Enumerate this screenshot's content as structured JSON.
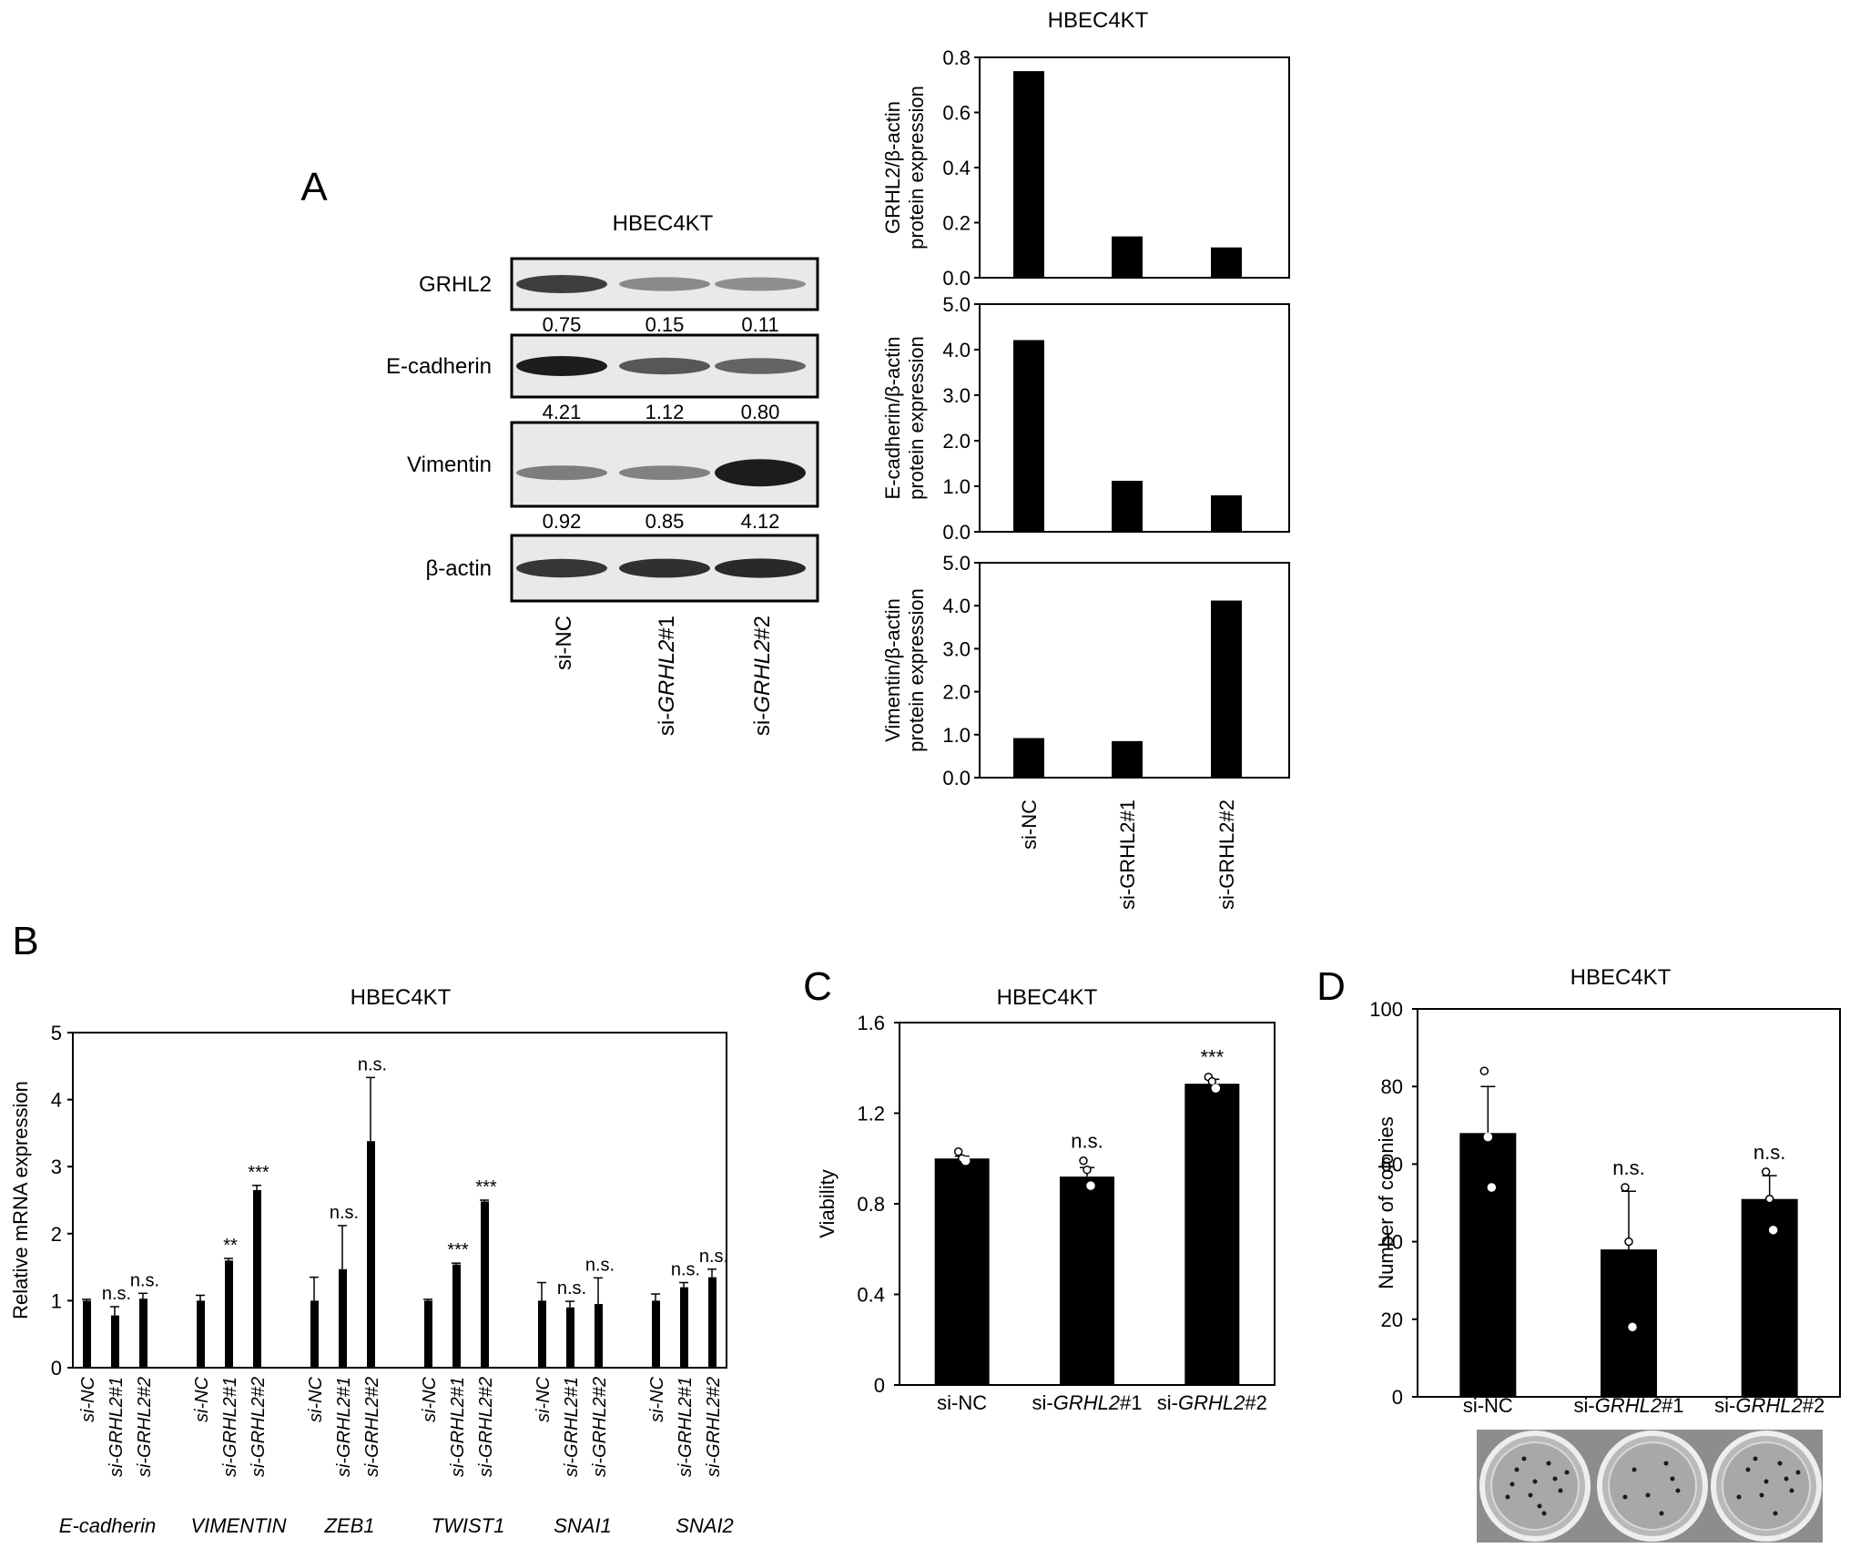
{
  "panels": {
    "A": {
      "letter": "A",
      "blot": {
        "title": "HBEC4KT",
        "rows": [
          {
            "protein": "GRHL2",
            "values": [
              "0.75",
              "0.15",
              "0.11"
            ]
          },
          {
            "protein": "E-cadherin",
            "values": [
              "4.21",
              "1.12",
              "0.80"
            ]
          },
          {
            "protein": "Vimentin",
            "values": [
              "0.92",
              "0.85",
              "4.12"
            ]
          },
          {
            "protein": "β-actin",
            "values": []
          }
        ],
        "lanes": [
          {
            "pre": "si-NC",
            "it": ""
          },
          {
            "pre": "si-",
            "it": "GRHL2",
            "post": "#1"
          },
          {
            "pre": "si-",
            "it": "GRHL2",
            "post": "#2"
          }
        ]
      }
    },
    "B": {
      "letter": "B"
    },
    "C": {
      "letter": "C"
    },
    "D": {
      "letter": "D",
      "photo_caption": "colony plate images"
    }
  },
  "chart_data": [
    {
      "id": "A-grhl2",
      "type": "bar",
      "title": "HBEC4KT",
      "categories": [
        "si-NC",
        "si-GRHL2#1",
        "si-GRHL2#2"
      ],
      "values": [
        0.75,
        0.15,
        0.11
      ],
      "ylabel": [
        "GRHL2/β-actin",
        "protein expression"
      ],
      "ylim": [
        0,
        0.8
      ],
      "yticks": [
        "0.0",
        "0.2",
        "0.4",
        "0.6",
        "0.8"
      ]
    },
    {
      "id": "A-ecad",
      "type": "bar",
      "categories": [
        "si-NC",
        "si-GRHL2#1",
        "si-GRHL2#2"
      ],
      "values": [
        4.21,
        1.12,
        0.8
      ],
      "ylabel": [
        "E-cadherin/β-actin",
        "protein expression"
      ],
      "ylim": [
        0,
        5
      ],
      "yticks": [
        "0.0",
        "1.0",
        "2.0",
        "3.0",
        "4.0",
        "5.0"
      ]
    },
    {
      "id": "A-vim",
      "type": "bar",
      "categories": [
        "si-NC",
        "si-GRHL2#1",
        "si-GRHL2#2"
      ],
      "values": [
        0.92,
        0.85,
        4.12
      ],
      "ylabel": [
        "Vimentin/β-actin",
        "protein expression"
      ],
      "ylim": [
        0,
        5
      ],
      "yticks": [
        "0.0",
        "1.0",
        "2.0",
        "3.0",
        "4.0",
        "5.0"
      ]
    },
    {
      "id": "B",
      "type": "bar",
      "title": "HBEC4KT",
      "ylabel": "Relative mRNA expression",
      "ylim": [
        0,
        5
      ],
      "yticks": [
        "0",
        "1",
        "2",
        "3",
        "4",
        "5"
      ],
      "conditions": [
        "si-NC",
        "si-GRHL2#1",
        "si-GRHL2#2"
      ],
      "groups": [
        {
          "gene": "E-cadherin",
          "values": [
            1.0,
            0.78,
            1.03
          ],
          "errors": [
            0.02,
            0.13,
            0.08
          ],
          "sig": [
            "",
            "n.s.",
            "n.s."
          ]
        },
        {
          "gene": "VIMENTIN",
          "values": [
            1.0,
            1.6,
            2.65
          ],
          "errors": [
            0.08,
            0.03,
            0.07
          ],
          "sig": [
            "",
            "**",
            "***"
          ]
        },
        {
          "gene": "ZEB1",
          "values": [
            1.0,
            1.47,
            3.38
          ],
          "errors": [
            0.35,
            0.65,
            0.95
          ],
          "sig": [
            "",
            "n.s.",
            "n.s."
          ]
        },
        {
          "gene": "TWIST1",
          "values": [
            1.0,
            1.54,
            2.48
          ],
          "errors": [
            0.02,
            0.02,
            0.02
          ],
          "sig": [
            "",
            "***",
            "***"
          ]
        },
        {
          "gene": "SNAI1",
          "values": [
            1.0,
            0.9,
            0.95
          ],
          "errors": [
            0.27,
            0.09,
            0.39
          ],
          "sig": [
            "",
            "n.s.",
            "n.s."
          ]
        },
        {
          "gene": "SNAI2",
          "values": [
            1.0,
            1.2,
            1.35
          ],
          "errors": [
            0.1,
            0.07,
            0.12
          ],
          "sig": [
            "",
            "n.s.",
            "n.s."
          ]
        }
      ]
    },
    {
      "id": "C",
      "type": "bar",
      "title": "HBEC4KT",
      "ylabel": "Viability",
      "ylim": [
        0,
        1.6
      ],
      "yticks": [
        "0",
        "0.4",
        "0.8",
        "1.2",
        "1.6"
      ],
      "categories": [
        "si-NC",
        "si-GRHL2#1",
        "si-GRHL2#2"
      ],
      "values": [
        1.0,
        0.92,
        1.33
      ],
      "errors": [
        0.01,
        0.04,
        0.02
      ],
      "points": [
        [
          1.03,
          1.0,
          0.99
        ],
        [
          0.99,
          0.95,
          0.88
        ],
        [
          1.36,
          1.34,
          1.31
        ]
      ],
      "sig": [
        "",
        "n.s.",
        "***"
      ]
    },
    {
      "id": "D",
      "type": "bar",
      "title": "HBEC4KT",
      "ylabel": "Number of colonies",
      "ylim": [
        0,
        100
      ],
      "yticks": [
        "0",
        "20",
        "40",
        "60",
        "80",
        "100"
      ],
      "categories": [
        "si-NC",
        "si-GRHL2#1",
        "si-GRHL2#2"
      ],
      "values": [
        68,
        38,
        51
      ],
      "errors": [
        12,
        15,
        6
      ],
      "points": [
        [
          84,
          67,
          54
        ],
        [
          54,
          40,
          18
        ],
        [
          58,
          51,
          43
        ]
      ],
      "sig": [
        "",
        "n.s.",
        "n.s."
      ]
    }
  ]
}
